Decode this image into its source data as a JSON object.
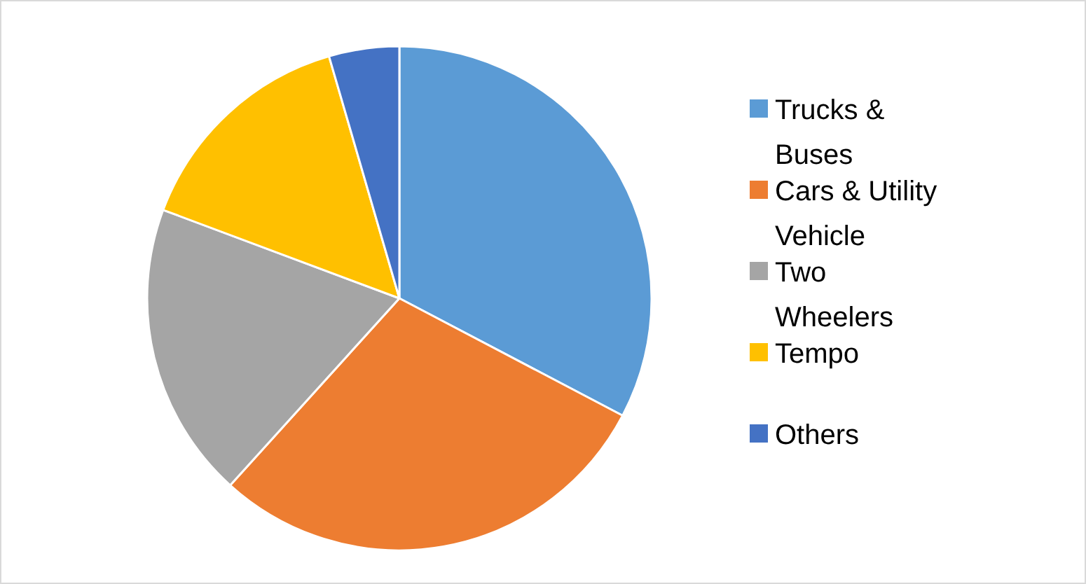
{
  "chart_data": {
    "type": "pie",
    "categories": [
      "Trucks & Buses",
      "Cars & Utility Vehicle",
      "Two Wheelers",
      "Tempo",
      "Others"
    ],
    "values": [
      32.7,
      29,
      19,
      14.8,
      4.5
    ],
    "colors": [
      "#5b9bd5",
      "#ed7d31",
      "#a5a5a5",
      "#ffc000",
      "#4472c4"
    ],
    "legend": "right"
  }
}
